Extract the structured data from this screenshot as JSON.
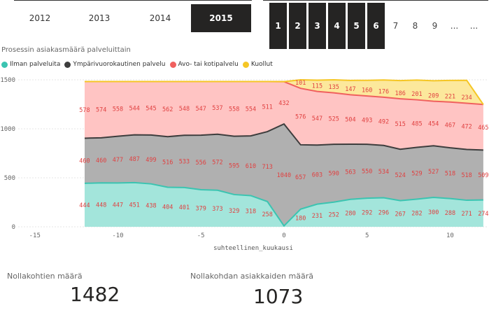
{
  "year_slicer": {
    "items": [
      {
        "label": "2012",
        "selected": false
      },
      {
        "label": "2013",
        "selected": false
      },
      {
        "label": "2014",
        "selected": false
      },
      {
        "label": "2015",
        "selected": true
      }
    ]
  },
  "number_slicer": {
    "items": [
      {
        "label": "1",
        "selected": true
      },
      {
        "label": "2",
        "selected": true
      },
      {
        "label": "3",
        "selected": true
      },
      {
        "label": "4",
        "selected": true
      },
      {
        "label": "5",
        "selected": true
      },
      {
        "label": "6",
        "selected": true
      },
      {
        "label": "7",
        "selected": false
      },
      {
        "label": "8",
        "selected": false
      },
      {
        "label": "9",
        "selected": false
      },
      {
        "label": "...",
        "selected": false
      },
      {
        "label": "...",
        "selected": false
      }
    ]
  },
  "chart_data": {
    "type": "area",
    "stacked": true,
    "title": "Prosessin asiakasmäärä palveluittain",
    "xlabel": "suhteellinen_kuukausi",
    "ylabel": "",
    "xlim": [
      -16,
      12.3
    ],
    "ylim": [
      0,
      1500
    ],
    "x_ticks": [
      -15,
      -10,
      -5,
      0,
      5,
      10
    ],
    "y_ticks": [
      0,
      500,
      1000,
      1500
    ],
    "grid": true,
    "legend_position": "top-left",
    "x": [
      -12,
      -11,
      -10,
      -9,
      -8,
      -7,
      -6,
      -5,
      -4,
      -3,
      -2,
      -1,
      0,
      1,
      2,
      3,
      4,
      5,
      6,
      7,
      8,
      9,
      10,
      11,
      12
    ],
    "series": [
      {
        "name": "Ilman palveluita",
        "color": "#3BC4B1",
        "area_color": "#A3E5DB",
        "values": [
          444,
          448,
          447,
          451,
          438,
          404,
          401,
          379,
          373,
          329,
          318,
          258,
          null,
          180,
          231,
          252,
          280,
          292,
          296,
          267,
          282,
          300,
          288,
          271,
          274
        ],
        "line_values": [
          444,
          448,
          447,
          451,
          438,
          404,
          401,
          379,
          373,
          329,
          318,
          258,
          9,
          180,
          231,
          252,
          280,
          292,
          296,
          267,
          282,
          300,
          288,
          271,
          274
        ]
      },
      {
        "name": "Ympärivuorokautinen palvelu",
        "color": "#3D3D3D",
        "area_color": "#B0B0B0",
        "values": [
          460,
          460,
          477,
          487,
          499,
          516,
          533,
          556,
          572,
          595,
          610,
          713,
          1040,
          657,
          603,
          590,
          563,
          550,
          534,
          524,
          529,
          527,
          518,
          518,
          509
        ]
      },
      {
        "name": "Avo- tai kotipalvelu",
        "color": "#F0605E",
        "area_color": "#FFC4C3",
        "values": [
          578,
          574,
          558,
          544,
          545,
          562,
          548,
          547,
          537,
          558,
          554,
          511,
          432,
          576,
          547,
          525,
          504,
          493,
          492,
          515,
          485,
          454,
          467,
          472,
          465
        ]
      },
      {
        "name": "Kuollut",
        "color": "#F5C625",
        "area_color": "#FCE89C",
        "values": [
          null,
          null,
          null,
          null,
          null,
          null,
          null,
          null,
          null,
          null,
          null,
          null,
          null,
          101,
          115,
          135,
          147,
          160,
          176,
          186,
          201,
          209,
          221,
          234,
          null
        ]
      }
    ]
  },
  "kpi_count": {
    "label": "Nollakohtien määrä",
    "value": "1482"
  },
  "kpi_customers": {
    "label": "Nollakohdan asiakkaiden määrä",
    "value": "1073"
  }
}
